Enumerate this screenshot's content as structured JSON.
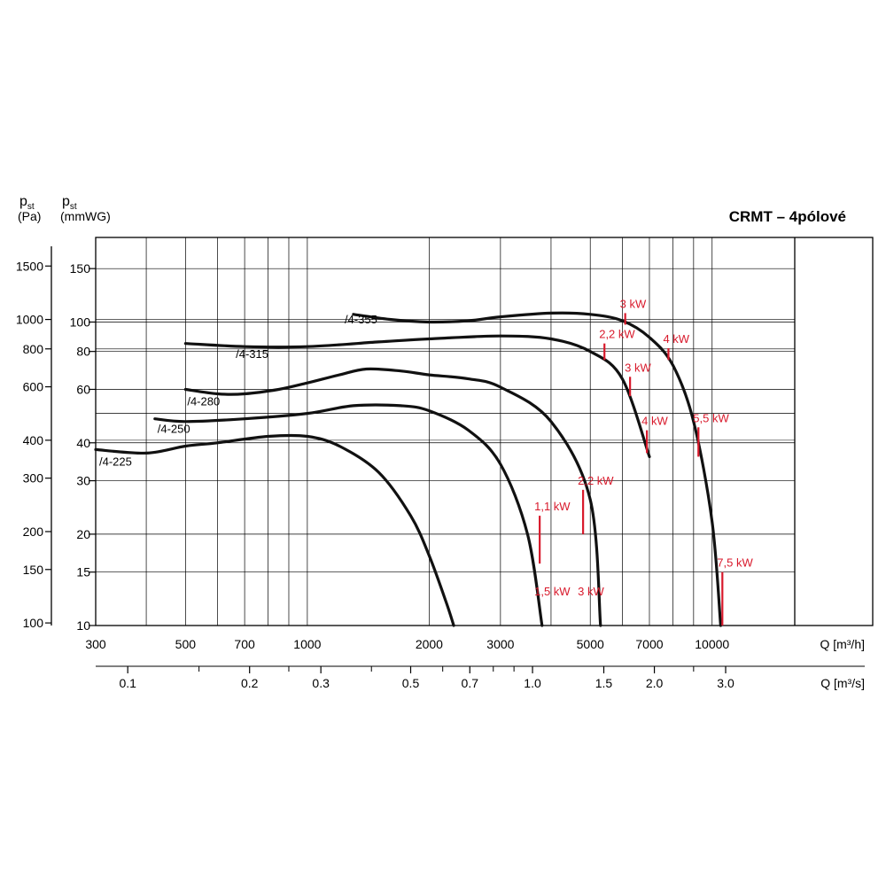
{
  "chart_data": {
    "type": "line",
    "title": "CRMT – 4pólové",
    "x_axis": {
      "label": "Q [m³/h]",
      "scale": "log",
      "range": [
        300,
        16000
      ],
      "tick_values": [
        300,
        500,
        700,
        1000,
        2000,
        3000,
        5000,
        7000,
        10000
      ],
      "tick_labels": [
        "300",
        "500",
        "700",
        "1000",
        "2000",
        "3000",
        "5000",
        "7000",
        "10000"
      ]
    },
    "x2_axis": {
      "label": "Q [m³/s]",
      "scale": "log",
      "tick_values": [
        0.1,
        0.2,
        0.3,
        0.5,
        0.7,
        1.0,
        1.5,
        2.0,
        3.0
      ],
      "tick_labels": [
        "0.1",
        "0.2",
        "0.3",
        "0.5",
        "0.7",
        "1.0",
        "1.5",
        "2.0",
        "3.0"
      ]
    },
    "y_axis": {
      "label_symbol": "p",
      "label_sub": "st",
      "unit": "(mmWG)",
      "scale": "log",
      "range": [
        10,
        190
      ],
      "tick_values": [
        10,
        15,
        20,
        30,
        40,
        60,
        80,
        100,
        150
      ],
      "tick_labels": [
        "10",
        "15",
        "20",
        "30",
        "40",
        "60",
        "80",
        "100",
        "150"
      ]
    },
    "y2_axis": {
      "label_symbol": "p",
      "label_sub": "st",
      "unit": "(Pa)",
      "scale": "log",
      "tick_values": [
        100,
        150,
        200,
        300,
        400,
        600,
        800,
        1000,
        1500
      ],
      "tick_labels": [
        "100",
        "150",
        "200",
        "300",
        "400",
        "600",
        "800",
        "1000",
        "1500"
      ]
    },
    "grid": true,
    "series": [
      {
        "name": "/4-225",
        "x": [
          300,
          400,
          500,
          600,
          800,
          1000,
          1200,
          1500,
          1800,
          2000,
          2200,
          2300
        ],
        "y": [
          38,
          37,
          39,
          40,
          42,
          42,
          39,
          32,
          23,
          17,
          12,
          10
        ]
      },
      {
        "name": "/4-250",
        "x": [
          420,
          500,
          700,
          1000,
          1300,
          1700,
          2000,
          2500,
          3000,
          3500,
          3800
        ],
        "y": [
          48,
          47,
          48,
          50,
          53,
          53,
          51,
          44,
          34,
          20,
          10
        ]
      },
      {
        "name": "/4-280",
        "x": [
          500,
          600,
          700,
          850,
          1000,
          1200,
          1400,
          1700,
          2000,
          2500,
          3000,
          4000,
          5000,
          5300
        ],
        "y": [
          60,
          58,
          58,
          60,
          63,
          67,
          70,
          69,
          67,
          65,
          61,
          47,
          26,
          10
        ]
      },
      {
        "name": "/4-315",
        "x": [
          500,
          700,
          1000,
          1500,
          2000,
          3000,
          4000,
          5000,
          6000,
          7000
        ],
        "y": [
          85,
          83,
          83,
          86,
          88,
          90,
          88,
          80,
          65,
          36
        ]
      },
      {
        "name": "/4-355",
        "x": [
          1300,
          1600,
          2000,
          2500,
          3000,
          4000,
          5000,
          6000,
          7000,
          8000,
          9000,
          10000,
          10500
        ],
        "y": [
          106,
          102,
          100,
          101,
          104,
          107,
          106,
          101,
          89,
          72,
          47,
          22,
          10
        ]
      }
    ],
    "power_marks": [
      {
        "label": "1,1 kW",
        "x": 3750,
        "y_low": 16,
        "y_high": 23
      },
      {
        "label": "1,5 kW",
        "x": 3750,
        "y": 13
      },
      {
        "label": "2,2 kW",
        "x": 4800,
        "y_low": 20,
        "y_high": 28
      },
      {
        "label": "3 kW",
        "x": 4800,
        "y": 13
      },
      {
        "label": "2,2 kW",
        "x": 5420,
        "y_low": 75,
        "y_high": 85
      },
      {
        "label": "3 kW",
        "x": 6270,
        "y_low": 57,
        "y_high": 66
      },
      {
        "label": "4 kW",
        "x": 6900,
        "y_low": 37,
        "y_high": 44
      },
      {
        "label": "3 kW",
        "x": 6100,
        "y_low": 98,
        "y_high": 107
      },
      {
        "label": "4 kW",
        "x": 7800,
        "y_low": 75,
        "y_high": 82
      },
      {
        "label": "5,5 kW",
        "x": 9250,
        "y_low": 36,
        "y_high": 45
      },
      {
        "label": "7,5 kW",
        "x": 10600,
        "y_low": 10,
        "y_high": 15
      }
    ]
  }
}
